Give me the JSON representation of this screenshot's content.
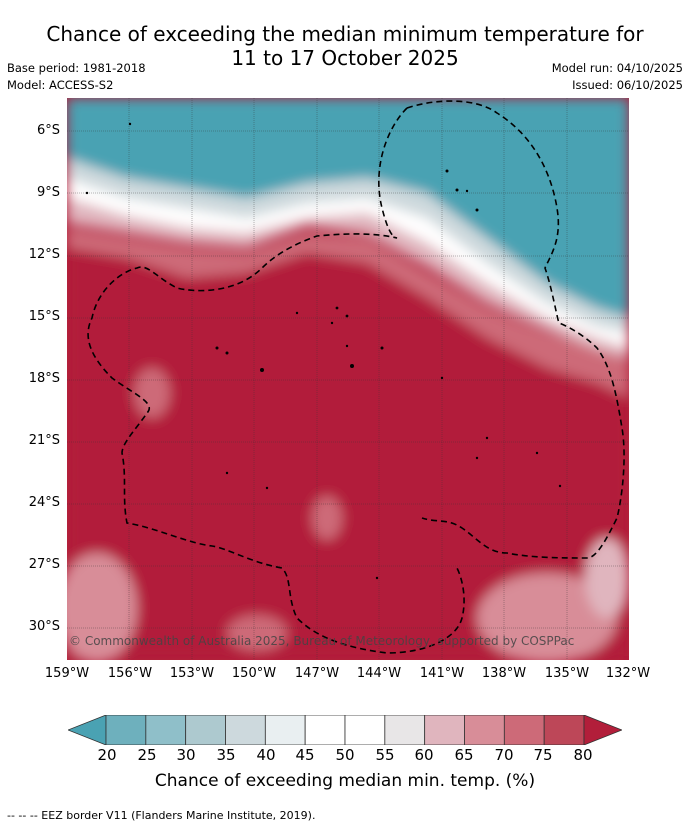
{
  "title_line1": "Chance of exceeding the median minimum temperature for",
  "title_line2": "11 to 17 October 2025",
  "base_period": "Base period: 1981-2018",
  "model": "Model: ACCESS-S2",
  "model_run": "Model run: 04/10/2025",
  "issued": "Issued: 06/10/2025",
  "copyright": "© Commonwealth of Australia 2025, Bureau of Meteorology, supported by COSPPac",
  "footer": "-- -- -- EEZ border V11 (Flanders Marine Institute, 2019).",
  "colorbar": {
    "label": "Chance of exceeding median min. temp. (%)",
    "ticks": [
      "20",
      "25",
      "30",
      "35",
      "40",
      "45",
      "50",
      "55",
      "60",
      "65",
      "70",
      "75",
      "80"
    ],
    "colors": [
      "#4aa2b3",
      "#6eb0bd",
      "#8fbfc9",
      "#adc9cf",
      "#cdd9dd",
      "#e9eff1",
      "#ffffff",
      "#ffffff",
      "#e8e6e7",
      "#e0b5be",
      "#d88d98",
      "#cd6a78",
      "#bd4758",
      "#b21e3a"
    ]
  },
  "chart_data": {
    "type": "heatmap",
    "lon_ticks": [
      "159°W",
      "156°W",
      "153°W",
      "150°W",
      "147°W",
      "144°W",
      "141°W",
      "138°W",
      "135°W",
      "132°W"
    ],
    "lat_ticks": [
      "6°S",
      "9°S",
      "12°S",
      "15°S",
      "18°S",
      "21°S",
      "24°S",
      "27°S",
      "30°S"
    ],
    "lon_range": [
      -159,
      -132
    ],
    "lat_range": [
      -31.5,
      -4.5
    ],
    "grid": true,
    "value_unit": "%"
  }
}
